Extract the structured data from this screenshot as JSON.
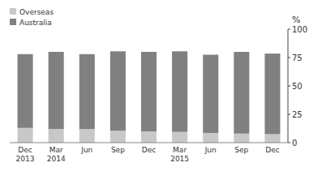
{
  "chart_data": {
    "type": "bar",
    "stacked": true,
    "categories": [
      "Dec\n2013",
      "Mar\n2014",
      "Jun",
      "Sep",
      "Dec",
      "Mar\n2015",
      "Jun",
      "Sep",
      "Dec"
    ],
    "series": [
      {
        "name": "Overseas",
        "color": "#c8c8c8",
        "values": [
          13.0,
          12.0,
          12.0,
          10.5,
          10.0,
          9.5,
          8.5,
          8.0,
          7.5
        ]
      },
      {
        "name": "Australia",
        "color": "#808080",
        "values": [
          65.0,
          68.0,
          66.0,
          70.0,
          70.0,
          71.0,
          69.0,
          72.0,
          71.0
        ]
      }
    ],
    "y_label": "%",
    "ylim": [
      0,
      100
    ],
    "yticks": [
      0,
      25,
      50,
      75,
      100
    ],
    "grid": false,
    "legend": "upper left"
  }
}
